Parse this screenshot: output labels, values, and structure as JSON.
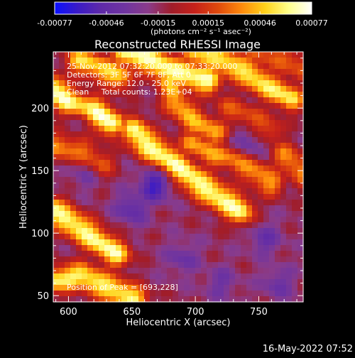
{
  "colors": {
    "background": "#000000",
    "foreground": "#ffffff",
    "colormap": [
      "#0a10ff",
      "#3b1bc6",
      "#5f2aa8",
      "#6f34a0",
      "#8a3b8a",
      "#a01d2a",
      "#c6211a",
      "#e04a0c",
      "#ff8a0c",
      "#ffd21a",
      "#ffff8a",
      "#ffffff"
    ]
  },
  "colorbar": {
    "tick_labels": [
      "-0.00077",
      "-0.00046",
      "-0.00015",
      "0.00015",
      "0.00046",
      "0.00077"
    ],
    "units_label": "(photons cm⁻² s⁻¹ asec⁻²)",
    "range": [
      -0.00077,
      0.00077
    ]
  },
  "footer": {
    "timestamp": "16-May-2022 07:52"
  },
  "chart_data": {
    "type": "heatmap",
    "title": "Reconstructed RHESSI Image",
    "xlabel": "Heliocentric X (arcsec)",
    "ylabel": "Heliocentric Y (arcsec)",
    "xlim": [
      588,
      785
    ],
    "ylim": [
      45,
      245
    ],
    "x_ticks": [
      600,
      650,
      700,
      750
    ],
    "y_ticks": [
      50,
      100,
      150,
      200
    ],
    "annotations": {
      "line1": "25-Nov-2012 07:32:20.000 to 07:33:20.000",
      "line2": "Detectors: 3F 5F 6F 7F 8F, Att 0",
      "line3": "Energy Range: 12.0 - 25.0 keV",
      "line4": "Clean     Total counts: 1.23E+04",
      "peak": "Position of Peak = [693,228]"
    },
    "ridges": [
      {
        "points": [
          [
            588,
            62
          ],
          [
            610,
            66
          ],
          [
            630,
            57
          ],
          [
            652,
            47
          ]
        ],
        "strength": 0.85
      },
      {
        "points": [
          [
            588,
            118
          ],
          [
            603,
            108
          ],
          [
            621,
            95
          ],
          [
            638,
            83
          ]
        ],
        "strength": 0.9
      },
      {
        "points": [
          [
            588,
            170
          ],
          [
            610,
            165
          ],
          [
            625,
            155
          ]
        ],
        "strength": 0.55
      },
      {
        "points": [
          [
            588,
            215
          ],
          [
            600,
            205
          ],
          [
            618,
            200
          ],
          [
            633,
            188
          ]
        ],
        "strength": 1.0
      },
      {
        "points": [
          [
            608,
            238
          ],
          [
            625,
            232
          ],
          [
            640,
            225
          ]
        ],
        "strength": 0.75
      },
      {
        "points": [
          [
            645,
            245
          ],
          [
            665,
            238
          ],
          [
            680,
            230
          ],
          [
            695,
            226
          ],
          [
            710,
            222
          ]
        ],
        "strength": 0.95
      },
      {
        "points": [
          [
            676,
            228
          ],
          [
            685,
            205
          ],
          [
            700,
            188
          ],
          [
            715,
            180
          ]
        ],
        "strength": 0.65
      },
      {
        "points": [
          [
            652,
            182
          ],
          [
            662,
            170
          ],
          [
            678,
            160
          ],
          [
            692,
            148
          ],
          [
            705,
            138
          ],
          [
            720,
            128
          ],
          [
            735,
            118
          ]
        ],
        "strength": 0.92
      },
      {
        "points": [
          [
            698,
            172
          ],
          [
            715,
            162
          ],
          [
            730,
            160
          ],
          [
            745,
            150
          ],
          [
            760,
            140
          ]
        ],
        "strength": 0.6
      },
      {
        "points": [
          [
            700,
            245
          ],
          [
            720,
            238
          ],
          [
            738,
            230
          ],
          [
            756,
            218
          ],
          [
            775,
            208
          ]
        ],
        "strength": 0.82
      },
      {
        "points": [
          [
            770,
            162
          ],
          [
            778,
            155
          ],
          [
            785,
            148
          ]
        ],
        "strength": 0.55
      },
      {
        "points": [
          [
            748,
            245
          ],
          [
            765,
            240
          ],
          [
            785,
            232
          ]
        ],
        "strength": 0.45
      },
      {
        "points": [
          [
            725,
            200
          ],
          [
            745,
            192
          ],
          [
            760,
            182
          ]
        ],
        "strength": 0.4
      }
    ],
    "cool_spots": [
      {
        "center": [
          668,
          138
        ],
        "strength": 1.0
      },
      {
        "center": [
          650,
          120
        ],
        "strength": 0.7
      },
      {
        "center": [
          615,
          150
        ],
        "strength": 0.55
      },
      {
        "center": [
          740,
          170
        ],
        "strength": 0.6
      },
      {
        "center": [
          755,
          95
        ],
        "strength": 0.55
      },
      {
        "center": [
          690,
          80
        ],
        "strength": 0.5
      },
      {
        "center": [
          610,
          200
        ],
        "strength": 0.45
      },
      {
        "center": [
          765,
          60
        ],
        "strength": 0.5
      },
      {
        "center": [
          720,
          60
        ],
        "strength": 0.45
      }
    ]
  }
}
